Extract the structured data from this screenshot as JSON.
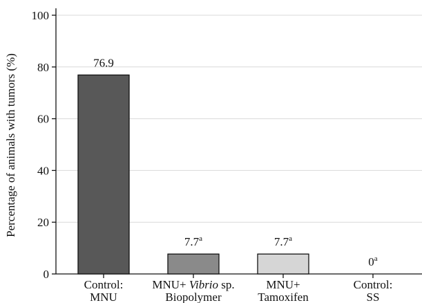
{
  "chart_data": {
    "type": "bar",
    "categories": [
      [
        "Control:",
        "MNU"
      ],
      [
        "MNU+ Vibrio sp.",
        "Biopolymer"
      ],
      [
        "MNU+",
        "Tamoxifen"
      ],
      [
        "Control:",
        "SS"
      ]
    ],
    "values": [
      76.9,
      7.7,
      7.7,
      0
    ],
    "data_labels": [
      "76.9",
      "7.7",
      "7.7",
      "0"
    ],
    "data_label_superscripts": [
      "",
      "a",
      "a",
      "a"
    ],
    "bar_colors": [
      "#585858",
      "#8a8a8a",
      "#d6d6d6",
      "#ffffff"
    ],
    "ylabel": "Percentage of animals with tumors (%)",
    "xlabel": "",
    "ylim": [
      0,
      100
    ],
    "yticks": [
      0,
      20,
      40,
      60,
      80,
      100
    ],
    "grid": "horizontal",
    "italic_word": "Vibrio"
  }
}
